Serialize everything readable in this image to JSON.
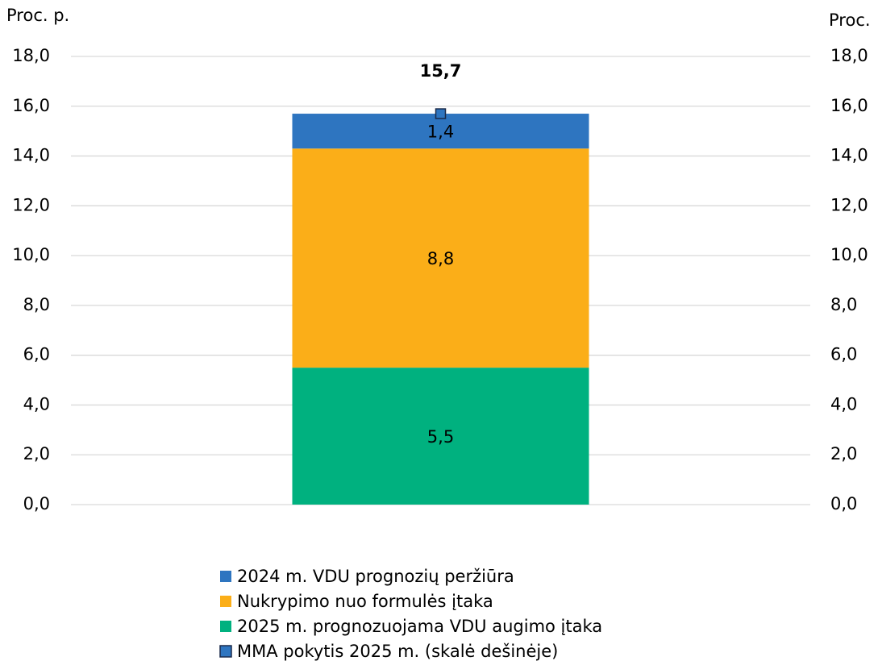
{
  "chart_data": {
    "type": "bar",
    "stacked": true,
    "ylabel": "Proc. p.",
    "y2label": "Proc.",
    "categories": [
      null
    ],
    "series": [
      {
        "name": "2024 m. VDU prognozių peržiūra",
        "color": "#2e75c0",
        "values": [
          1.4
        ],
        "value_labels": [
          "1,4"
        ]
      },
      {
        "name": "Nukrypimo nuo formulės įtaka",
        "color": "#fbae18",
        "values": [
          8.8
        ],
        "value_labels": [
          "8,8"
        ]
      },
      {
        "name": "2025 m. prognozuojama VDU augimo įtaka",
        "color": "#00b17f",
        "values": [
          5.5
        ],
        "value_labels": [
          "5,5"
        ]
      },
      {
        "name": "MMA pokytis 2025 m. (skalė dešinėje)",
        "color": "#2e75c0",
        "values": [
          15.7
        ],
        "value_labels": [
          "15,7"
        ],
        "axis": "y2",
        "type": "marker"
      }
    ],
    "ylim": [
      0,
      18
    ],
    "yticks": [
      {
        "value": 0,
        "label": "0,0"
      },
      {
        "value": 2,
        "label": "2,0"
      },
      {
        "value": 4,
        "label": "4,0"
      },
      {
        "value": 6,
        "label": "6,0"
      },
      {
        "value": 8,
        "label": "8,0"
      },
      {
        "value": 10,
        "label": "10,0"
      },
      {
        "value": 12,
        "label": "12,0"
      },
      {
        "value": 14,
        "label": "14,0"
      },
      {
        "value": 16,
        "label": "16,0"
      },
      {
        "value": 18,
        "label": "18,0"
      }
    ],
    "y2lim": [
      0,
      18
    ],
    "y2ticks": [
      {
        "value": 0,
        "label": "0,0"
      },
      {
        "value": 2,
        "label": "2,0"
      },
      {
        "value": 4,
        "label": "4,0"
      },
      {
        "value": 6,
        "label": "6,0"
      },
      {
        "value": 8,
        "label": "8,0"
      },
      {
        "value": 10,
        "label": "10,0"
      },
      {
        "value": 12,
        "label": "12,0"
      },
      {
        "value": 14,
        "label": "14,0"
      },
      {
        "value": 16,
        "label": "16,0"
      },
      {
        "value": 18,
        "label": "18,0"
      }
    ],
    "grid": true,
    "legend": "bottom"
  }
}
